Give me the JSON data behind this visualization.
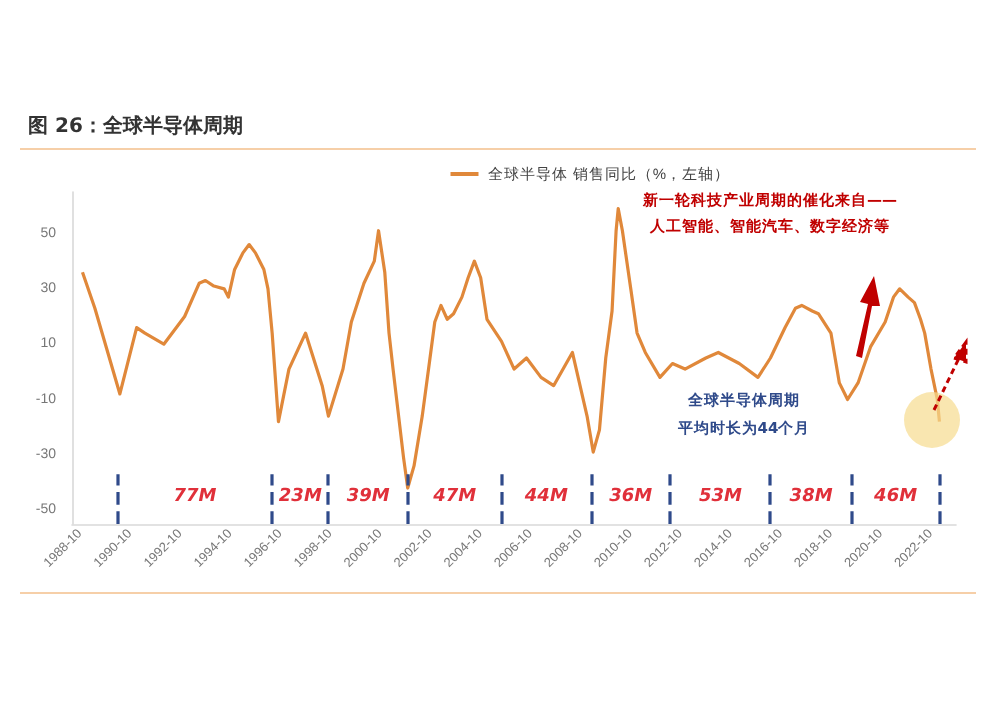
{
  "chart_data": {
    "type": "line",
    "title": "图 26：全球半导体周期",
    "x": [
      "1988-11",
      "1989-05",
      "1990-05",
      "1991-01",
      "1991-05",
      "1992-02",
      "1992-12",
      "1993-07",
      "1993-10",
      "1994-02",
      "1994-07",
      "1994-09",
      "1994-12",
      "1995-04",
      "1995-07",
      "1995-10",
      "1996-02",
      "1996-04",
      "1996-06",
      "1996-09",
      "1997-02",
      "1997-10",
      "1998-06",
      "1998-09",
      "1999-04",
      "1999-08",
      "2000-02",
      "2000-07",
      "2000-09",
      "2000-12",
      "2001-02",
      "2001-04",
      "2001-09",
      "2001-11",
      "2002-02",
      "2002-06",
      "2002-09",
      "2002-12",
      "2003-03",
      "2003-06",
      "2003-09",
      "2004-01",
      "2004-04",
      "2004-07",
      "2004-10",
      "2005-01",
      "2005-08",
      "2006-02",
      "2006-08",
      "2007-03",
      "2007-09",
      "2008-06",
      "2009-01",
      "2009-04",
      "2009-07",
      "2009-10",
      "2010-01",
      "2010-03",
      "2010-04",
      "2010-06",
      "2010-10",
      "2011-01",
      "2011-05",
      "2011-12",
      "2012-06",
      "2012-12",
      "2013-10",
      "2014-04",
      "2015-02",
      "2015-11",
      "2016-05",
      "2016-12",
      "2017-05",
      "2017-08",
      "2018-01",
      "2018-04",
      "2018-10",
      "2019-02",
      "2019-06",
      "2019-11",
      "2020-05",
      "2020-12",
      "2021-04",
      "2021-07",
      "2021-11",
      "2022-02",
      "2022-05",
      "2022-07",
      "2022-10",
      "2023-01",
      "2023-02"
    ],
    "series": [
      {
        "name": "全球半导体 销售同比（%，左轴）",
        "color": "#e0883a",
        "values": [
          36,
          23,
          -8,
          16,
          14,
          10,
          20,
          32,
          33,
          31,
          30,
          27,
          37,
          43,
          46,
          43,
          37,
          30,
          14,
          -18,
          1,
          14,
          -5,
          -16,
          1,
          18,
          32,
          40,
          51,
          36,
          14,
          1,
          -31,
          -42,
          -34,
          -16,
          1,
          18,
          24,
          19,
          21,
          27,
          34,
          40,
          34,
          19,
          11,
          1,
          5,
          -2,
          -5,
          7,
          -16,
          -29,
          -21,
          5,
          22,
          51,
          59,
          51,
          30,
          14,
          7,
          -2,
          3,
          1,
          5,
          7,
          3,
          -2,
          5,
          16,
          23,
          24,
          22,
          21,
          14,
          -4,
          -10,
          -4,
          9,
          18,
          27,
          30,
          27,
          25,
          19,
          14,
          1,
          -10,
          -18
        ]
      }
    ],
    "xlim": [
      "1988-06",
      "2023-10"
    ],
    "xticks": [
      "1988-10",
      "1990-10",
      "1992-10",
      "1994-10",
      "1996-10",
      "1998-10",
      "2000-10",
      "2002-10",
      "2004-10",
      "2006-10",
      "2008-10",
      "2010-10",
      "2012-10",
      "2014-10",
      "2016-10",
      "2018-10",
      "2020-10",
      "2022-10"
    ],
    "ylim": [
      -55,
      65
    ],
    "yticks": [
      -50,
      -30,
      -10,
      10,
      30,
      50
    ],
    "grid": false,
    "legend": "top right",
    "line_style": "solid",
    "ref_lines": [
      {
        "axis": "x",
        "value": "1990-04",
        "color": "#2f4a8a",
        "line_style": "dashed"
      },
      {
        "axis": "x",
        "value": "1996-06",
        "color": "#2f4a8a",
        "line_style": "dashed"
      },
      {
        "axis": "x",
        "value": "1998-09",
        "color": "#2f4a8a",
        "line_style": "dashed"
      },
      {
        "axis": "x",
        "value": "2001-11",
        "color": "#2f4a8a",
        "line_style": "dashed"
      },
      {
        "axis": "x",
        "value": "2005-08",
        "color": "#2f4a8a",
        "line_style": "dashed"
      },
      {
        "axis": "x",
        "value": "2009-03",
        "color": "#2f4a8a",
        "line_style": "dashed"
      },
      {
        "axis": "x",
        "value": "2012-05",
        "color": "#2f4a8a",
        "line_style": "dashed"
      },
      {
        "axis": "x",
        "value": "2016-05",
        "color": "#2f4a8a",
        "line_style": "dashed"
      },
      {
        "axis": "x",
        "value": "2019-08",
        "color": "#2f4a8a",
        "line_style": "dashed"
      },
      {
        "axis": "x",
        "value": "2023-02",
        "color": "#2f4a8a",
        "line_style": "dashed"
      }
    ],
    "annotations": [
      "新一轮科技产业周期的催化来自——",
      "人工智能、智能汽车、数字经济等",
      "全球半导体周期",
      "平均时长为44个月",
      "77M",
      "23M",
      "39M",
      "47M",
      "44M",
      "36M",
      "53M",
      "38M",
      "46M"
    ]
  }
}
